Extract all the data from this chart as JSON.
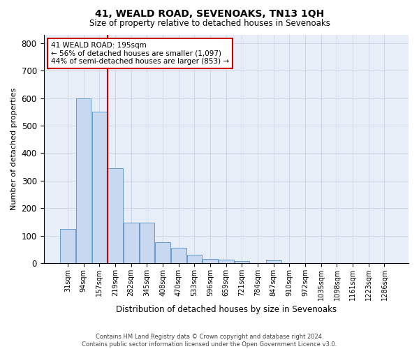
{
  "title": "41, WEALD ROAD, SEVENOAKS, TN13 1QH",
  "subtitle": "Size of property relative to detached houses in Sevenoaks",
  "xlabel": "Distribution of detached houses by size in Sevenoaks",
  "ylabel": "Number of detached properties",
  "bar_categories": [
    "31sqm",
    "94sqm",
    "157sqm",
    "219sqm",
    "282sqm",
    "345sqm",
    "408sqm",
    "470sqm",
    "533sqm",
    "596sqm",
    "659sqm",
    "721sqm",
    "784sqm",
    "847sqm",
    "910sqm",
    "972sqm",
    "1035sqm",
    "1098sqm",
    "1161sqm",
    "1223sqm",
    "1286sqm"
  ],
  "bar_heights": [
    125,
    600,
    550,
    345,
    148,
    148,
    75,
    55,
    30,
    15,
    13,
    8,
    0,
    10,
    0,
    0,
    0,
    0,
    0,
    0,
    0
  ],
  "bar_color": "#c8d8f0",
  "bar_edge_color": "#6699cc",
  "property_line_x": 2.5,
  "annotation_line1": "41 WEALD ROAD: 195sqm",
  "annotation_line2": "← 56% of detached houses are smaller (1,097)",
  "annotation_line3": "44% of semi-detached houses are larger (853) →",
  "vline_color": "#cc0000",
  "annotation_box_color": "#cc0000",
  "plot_bg_color": "#e8eef8",
  "background_color": "#ffffff",
  "grid_color": "#c8d4e8",
  "ylim": [
    0,
    830
  ],
  "yticks": [
    0,
    100,
    200,
    300,
    400,
    500,
    600,
    700,
    800
  ],
  "footer1": "Contains HM Land Registry data © Crown copyright and database right 2024.",
  "footer2": "Contains public sector information licensed under the Open Government Licence v3.0."
}
